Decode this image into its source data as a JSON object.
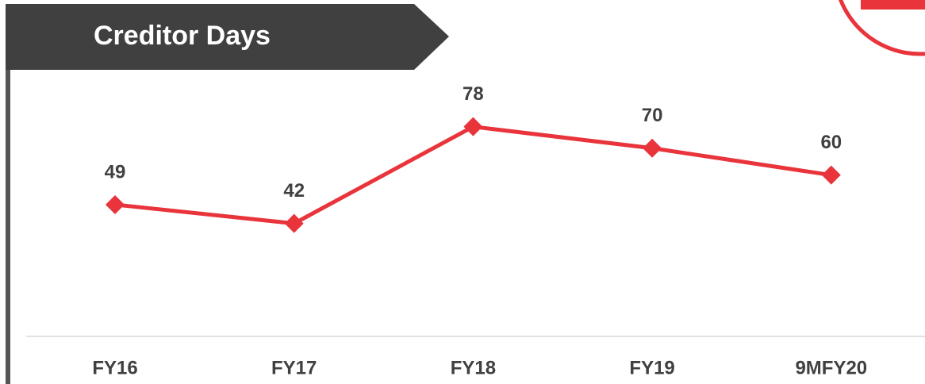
{
  "chart_data": {
    "type": "line",
    "title": "Creditor Days",
    "categories": [
      "FY16",
      "FY17",
      "FY18",
      "FY19",
      "9MFY20"
    ],
    "series": [
      {
        "name": "Creditor Days",
        "color": "#e8343a",
        "values": [
          49,
          42,
          78,
          70,
          60
        ]
      }
    ],
    "ylim": [
      0,
      90
    ]
  }
}
